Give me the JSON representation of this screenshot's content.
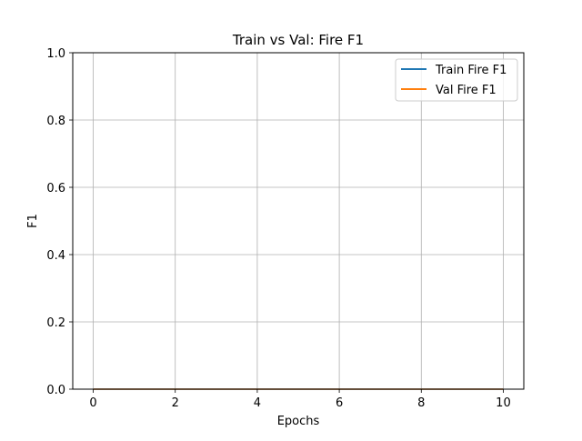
{
  "chart_data": {
    "type": "line",
    "title": "Train vs Val: Fire F1",
    "xlabel": "Epochs",
    "ylabel": "F1",
    "xlim": [
      -0.5,
      10.5
    ],
    "ylim": [
      0.0,
      1.0
    ],
    "x_ticks": [
      0,
      2,
      4,
      6,
      8,
      10
    ],
    "x_tick_labels": [
      "0",
      "2",
      "4",
      "6",
      "8",
      "10"
    ],
    "y_ticks": [
      0.0,
      0.2,
      0.4,
      0.6,
      0.8,
      1.0
    ],
    "y_tick_labels": [
      "0.0",
      "0.2",
      "0.4",
      "0.6",
      "0.8",
      "1.0"
    ],
    "grid": true,
    "legend_position": "top-right",
    "x": [
      0,
      1,
      2,
      3,
      4,
      5,
      6,
      7,
      8,
      9,
      10
    ],
    "series": [
      {
        "name": "Train Fire F1",
        "color": "#1f77b4",
        "values": [
          0,
          0,
          0,
          0,
          0,
          0,
          0,
          0,
          0,
          0,
          0
        ]
      },
      {
        "name": "Val Fire F1",
        "color": "#ff7f0e",
        "values": [
          0,
          0,
          0,
          0,
          0,
          0,
          0,
          0,
          0,
          0,
          0
        ]
      }
    ]
  }
}
